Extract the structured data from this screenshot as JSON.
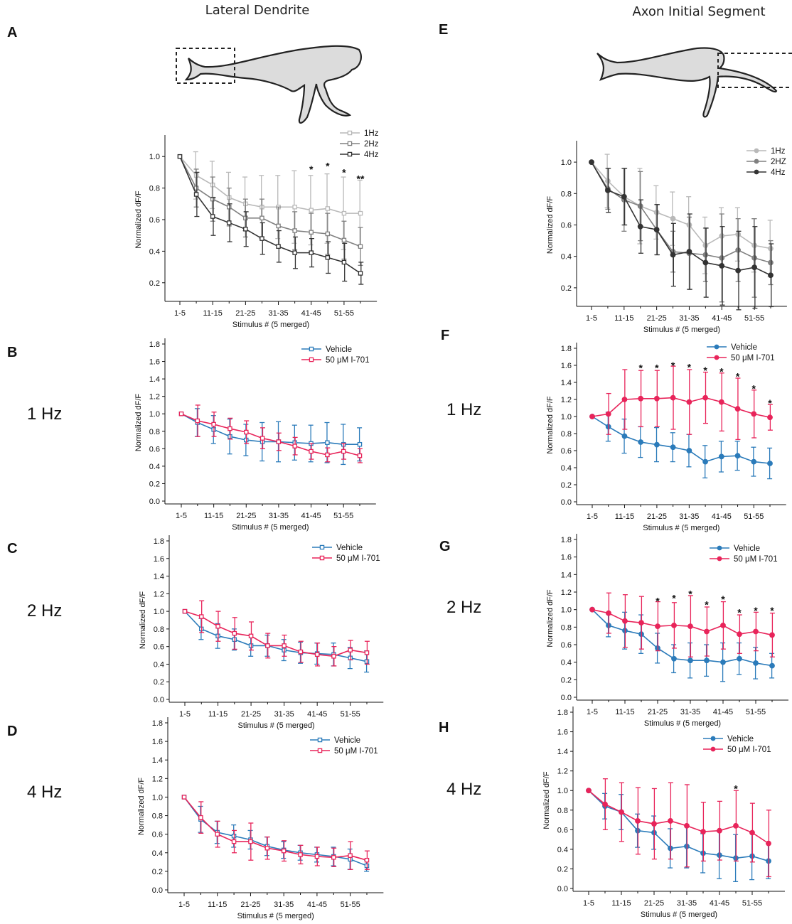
{
  "figure": {
    "column_titles": [
      "Lateral Dendrite",
      "Axon Initial Segment"
    ],
    "frequency_labels": [
      "1 Hz",
      "2 Hz",
      "4 Hz",
      "1 Hz",
      "2 Hz",
      "4 Hz"
    ]
  },
  "colors": {
    "light_gray": "#b9b9b9",
    "mid_gray": "#808080",
    "dark_gray": "#333333",
    "vehicle": "#2b7bba",
    "drug": "#e8245a"
  },
  "chart_data": [
    {
      "panel": "A",
      "type": "line",
      "marker": "open-square",
      "xlabel": "Stimulus # (5 merged)",
      "ylabel": "Normalized dF/F",
      "xticks": [
        "1-5",
        "11-15",
        "21-25",
        "31-35",
        "41-45",
        "51-55"
      ],
      "ylim": [
        0.1,
        1.1
      ],
      "yticks": [
        "0.2",
        "0.4",
        "0.6",
        "0.8",
        "1.0"
      ],
      "series": [
        {
          "name": "1Hz",
          "color_key": "light_gray",
          "values": [
            1.0,
            0.88,
            0.82,
            0.74,
            0.7,
            0.68,
            0.68,
            0.68,
            0.66,
            0.67,
            0.64,
            0.64
          ],
          "err": [
            0.0,
            0.15,
            0.15,
            0.16,
            0.17,
            0.2,
            0.2,
            0.23,
            0.22,
            0.22,
            0.23,
            0.21
          ]
        },
        {
          "name": "2Hz",
          "color_key": "mid_gray",
          "values": [
            1.0,
            0.8,
            0.73,
            0.68,
            0.61,
            0.61,
            0.56,
            0.53,
            0.52,
            0.51,
            0.47,
            0.43
          ],
          "err": [
            0.0,
            0.12,
            0.14,
            0.12,
            0.12,
            0.12,
            0.12,
            0.12,
            0.12,
            0.13,
            0.12,
            0.12
          ]
        },
        {
          "name": "4Hz",
          "color_key": "dark_gray",
          "values": [
            1.0,
            0.76,
            0.62,
            0.58,
            0.54,
            0.48,
            0.43,
            0.39,
            0.39,
            0.36,
            0.33,
            0.26
          ],
          "err": [
            0.0,
            0.14,
            0.12,
            0.12,
            0.11,
            0.1,
            0.1,
            0.1,
            0.09,
            0.1,
            0.12,
            0.07
          ]
        }
      ],
      "annotations": [
        {
          "index": 8,
          "y": 0.92,
          "text": "*"
        },
        {
          "index": 9,
          "y": 0.94,
          "text": "*"
        },
        {
          "index": 10,
          "y": 0.9,
          "text": "*"
        },
        {
          "index": 11,
          "y": 0.86,
          "text": "**"
        }
      ]
    },
    {
      "panel": "B",
      "type": "line",
      "marker": "open-square",
      "xlabel": "Stimulus # (5 merged)",
      "ylabel": "Normalized dF/F",
      "xticks": [
        "1-5",
        "11-15",
        "21-25",
        "31-35",
        "41-45",
        "51-55"
      ],
      "ylim": [
        0.0,
        1.8
      ],
      "yticks": [
        "0.0",
        "0.2",
        "0.4",
        "0.6",
        "0.8",
        "1.0",
        "1.2",
        "1.4",
        "1.6",
        "1.8"
      ],
      "series": [
        {
          "name": "Vehicle",
          "color_key": "vehicle",
          "values": [
            1.0,
            0.9,
            0.82,
            0.74,
            0.7,
            0.68,
            0.68,
            0.67,
            0.66,
            0.67,
            0.65,
            0.65
          ],
          "err": [
            0.0,
            0.16,
            0.16,
            0.2,
            0.18,
            0.22,
            0.23,
            0.2,
            0.21,
            0.23,
            0.23,
            0.19
          ]
        },
        {
          "name": "50 μM I-701",
          "color_key": "drug",
          "values": [
            1.0,
            0.92,
            0.88,
            0.83,
            0.79,
            0.72,
            0.68,
            0.63,
            0.57,
            0.53,
            0.57,
            0.52
          ],
          "err": [
            0.0,
            0.18,
            0.14,
            0.12,
            0.13,
            0.12,
            0.1,
            0.1,
            0.09,
            0.08,
            0.09,
            0.08
          ]
        }
      ]
    },
    {
      "panel": "C",
      "type": "line",
      "marker": "open-square",
      "xlabel": "Stimulus # (5 merged)",
      "ylabel": "Normalized dF/F",
      "xticks": [
        "1-5",
        "11-15",
        "21-25",
        "31-35",
        "41-45",
        "51-55"
      ],
      "ylim": [
        0.0,
        1.8
      ],
      "yticks": [
        "0.0",
        "0.2",
        "0.4",
        "0.6",
        "0.8",
        "1.0",
        "1.2",
        "1.4",
        "1.6",
        "1.8"
      ],
      "series": [
        {
          "name": "Vehicle",
          "color_key": "vehicle",
          "values": [
            1.0,
            0.8,
            0.72,
            0.68,
            0.61,
            0.61,
            0.56,
            0.53,
            0.52,
            0.51,
            0.47,
            0.43
          ],
          "err": [
            0.0,
            0.12,
            0.14,
            0.12,
            0.12,
            0.12,
            0.12,
            0.12,
            0.12,
            0.13,
            0.12,
            0.12
          ]
        },
        {
          "name": "50 μM I-701",
          "color_key": "drug",
          "values": [
            1.0,
            0.94,
            0.83,
            0.75,
            0.72,
            0.61,
            0.61,
            0.54,
            0.51,
            0.49,
            0.56,
            0.53
          ],
          "err": [
            0.0,
            0.18,
            0.17,
            0.18,
            0.16,
            0.14,
            0.12,
            0.12,
            0.13,
            0.11,
            0.11,
            0.13
          ]
        }
      ]
    },
    {
      "panel": "D",
      "type": "line",
      "marker": "open-square",
      "xlabel": "Stimulus # (5 merged)",
      "ylabel": "Normalized dF/F",
      "xticks": [
        "1-5",
        "11-15",
        "21-25",
        "31-35",
        "41-45",
        "51-55"
      ],
      "ylim": [
        0.0,
        1.8
      ],
      "yticks": [
        "0.0",
        "0.2",
        "0.4",
        "0.6",
        "0.8",
        "1.0",
        "1.2",
        "1.4",
        "1.6",
        "1.8"
      ],
      "series": [
        {
          "name": "Vehicle",
          "color_key": "vehicle",
          "values": [
            1.0,
            0.76,
            0.62,
            0.58,
            0.54,
            0.47,
            0.43,
            0.4,
            0.38,
            0.36,
            0.33,
            0.26
          ],
          "err": [
            0.0,
            0.14,
            0.12,
            0.12,
            0.1,
            0.1,
            0.09,
            0.08,
            0.08,
            0.1,
            0.11,
            0.06
          ]
        },
        {
          "name": "50 μM I-701",
          "color_key": "drug",
          "values": [
            1.0,
            0.78,
            0.6,
            0.52,
            0.52,
            0.45,
            0.42,
            0.38,
            0.36,
            0.35,
            0.37,
            0.32
          ],
          "err": [
            0.0,
            0.17,
            0.14,
            0.12,
            0.2,
            0.12,
            0.11,
            0.1,
            0.1,
            0.1,
            0.15,
            0.1
          ]
        }
      ]
    },
    {
      "panel": "E",
      "type": "line",
      "marker": "filled-circle",
      "xlabel": "Stimulus # (5 merged)",
      "ylabel": "Normalized dF/F",
      "xticks": [
        "1-5",
        "11-15",
        "21-25",
        "31-35",
        "41-45",
        "51-55"
      ],
      "ylim": [
        0.1,
        1.1
      ],
      "yticks": [
        "0.2",
        "0.4",
        "0.6",
        "0.8",
        "1.0"
      ],
      "series": [
        {
          "name": "1Hz",
          "color_key": "light_gray",
          "values": [
            1.0,
            0.88,
            0.78,
            0.72,
            0.68,
            0.64,
            0.6,
            0.47,
            0.53,
            0.54,
            0.47,
            0.45
          ],
          "err": [
            0.0,
            0.17,
            0.18,
            0.24,
            0.17,
            0.17,
            0.18,
            0.18,
            0.18,
            0.17,
            0.17,
            0.18
          ]
        },
        {
          "name": "2HZ",
          "color_key": "mid_gray",
          "values": [
            1.0,
            0.83,
            0.76,
            0.72,
            0.57,
            0.43,
            0.42,
            0.41,
            0.39,
            0.44,
            0.39,
            0.36
          ],
          "err": [
            0.0,
            0.13,
            0.2,
            0.22,
            0.16,
            0.13,
            0.23,
            0.17,
            0.28,
            0.2,
            0.25,
            0.14
          ]
        },
        {
          "name": "4Hz",
          "color_key": "dark_gray",
          "values": [
            1.0,
            0.82,
            0.78,
            0.59,
            0.57,
            0.41,
            0.43,
            0.36,
            0.34,
            0.31,
            0.33,
            0.28
          ],
          "err": [
            0.0,
            0.14,
            0.18,
            0.17,
            0.16,
            0.2,
            0.24,
            0.22,
            0.25,
            0.25,
            0.26,
            0.2
          ]
        }
      ]
    },
    {
      "panel": "F",
      "type": "line",
      "marker": "filled-circle",
      "xlabel": "Stimulus # (5 merged)",
      "ylabel": "Normalized dF/F",
      "xticks": [
        "1-5",
        "11-15",
        "21-25",
        "31-35",
        "41-45",
        "51-55"
      ],
      "ylim": [
        0.0,
        1.8
      ],
      "yticks": [
        "0.0",
        "0.2",
        "0.4",
        "0.6",
        "0.8",
        "1.0",
        "1.2",
        "1.4",
        "1.6",
        "1.8"
      ],
      "series": [
        {
          "name": "Vehicle",
          "color_key": "vehicle",
          "values": [
            1.0,
            0.88,
            0.77,
            0.7,
            0.67,
            0.64,
            0.6,
            0.47,
            0.53,
            0.54,
            0.47,
            0.45
          ],
          "err": [
            0.0,
            0.17,
            0.2,
            0.18,
            0.2,
            0.17,
            0.19,
            0.19,
            0.18,
            0.17,
            0.17,
            0.18
          ]
        },
        {
          "name": "50 μM I-701",
          "color_key": "drug",
          "values": [
            1.0,
            1.03,
            1.2,
            1.21,
            1.21,
            1.22,
            1.17,
            1.22,
            1.17,
            1.09,
            1.03,
            0.99
          ],
          "err": [
            0.0,
            0.24,
            0.35,
            0.33,
            0.33,
            0.37,
            0.38,
            0.3,
            0.34,
            0.36,
            0.28,
            0.15
          ]
        }
      ],
      "annotations": [
        {
          "index": 3,
          "y": 1.57,
          "text": "*"
        },
        {
          "index": 4,
          "y": 1.57,
          "text": "*"
        },
        {
          "index": 5,
          "y": 1.6,
          "text": "*"
        },
        {
          "index": 6,
          "y": 1.58,
          "text": "*"
        },
        {
          "index": 7,
          "y": 1.54,
          "text": "*"
        },
        {
          "index": 8,
          "y": 1.53,
          "text": "*"
        },
        {
          "index": 9,
          "y": 1.47,
          "text": "*"
        },
        {
          "index": 10,
          "y": 1.33,
          "text": "*"
        },
        {
          "index": 11,
          "y": 1.16,
          "text": "*"
        }
      ]
    },
    {
      "panel": "G",
      "type": "line",
      "marker": "filled-circle",
      "xlabel": "Stimulus # (5 merged)",
      "ylabel": "Normalized dF/F",
      "xticks": [
        "1-5",
        "11-15",
        "21-25",
        "31-35",
        "41-45",
        "51-55"
      ],
      "ylim": [
        0.0,
        1.8
      ],
      "yticks": [
        "0.0",
        "0.2",
        "0.4",
        "0.6",
        "0.8",
        "1.0",
        "1.2",
        "1.4",
        "1.6",
        "1.8"
      ],
      "series": [
        {
          "name": "Vehicle",
          "color_key": "vehicle",
          "values": [
            1.0,
            0.82,
            0.76,
            0.72,
            0.56,
            0.44,
            0.42,
            0.42,
            0.4,
            0.44,
            0.39,
            0.36
          ],
          "err": [
            0.0,
            0.13,
            0.21,
            0.22,
            0.17,
            0.16,
            0.2,
            0.18,
            0.22,
            0.18,
            0.18,
            0.14
          ]
        },
        {
          "name": "50 μM I-701",
          "color_key": "drug",
          "values": [
            1.0,
            0.96,
            0.87,
            0.85,
            0.81,
            0.82,
            0.81,
            0.75,
            0.82,
            0.72,
            0.75,
            0.71
          ],
          "err": [
            0.0,
            0.23,
            0.3,
            0.3,
            0.28,
            0.26,
            0.35,
            0.28,
            0.27,
            0.22,
            0.22,
            0.25
          ]
        }
      ],
      "annotations": [
        {
          "index": 4,
          "y": 1.1,
          "text": "*"
        },
        {
          "index": 5,
          "y": 1.13,
          "text": "*"
        },
        {
          "index": 6,
          "y": 1.18,
          "text": "*"
        },
        {
          "index": 7,
          "y": 1.06,
          "text": "*"
        },
        {
          "index": 8,
          "y": 1.12,
          "text": "*"
        },
        {
          "index": 9,
          "y": 0.97,
          "text": "*"
        },
        {
          "index": 10,
          "y": 0.99,
          "text": "*"
        },
        {
          "index": 11,
          "y": 0.99,
          "text": "*"
        }
      ]
    },
    {
      "panel": "H",
      "type": "line",
      "marker": "filled-circle",
      "xlabel": "Stimulus # (5 merged)",
      "ylabel": "Normalized dF/F",
      "xticks": [
        "1-5",
        "11-15",
        "21-25",
        "31-35",
        "41-45",
        "51-55"
      ],
      "ylim": [
        0.0,
        1.8
      ],
      "yticks": [
        "0.0",
        "0.2",
        "0.4",
        "0.6",
        "0.8",
        "1.0",
        "1.2",
        "1.4",
        "1.6",
        "1.8"
      ],
      "series": [
        {
          "name": "Vehicle",
          "color_key": "vehicle",
          "values": [
            1.0,
            0.84,
            0.78,
            0.59,
            0.57,
            0.41,
            0.43,
            0.36,
            0.34,
            0.31,
            0.33,
            0.28
          ],
          "err": [
            0.0,
            0.13,
            0.18,
            0.17,
            0.17,
            0.2,
            0.22,
            0.2,
            0.24,
            0.24,
            0.24,
            0.18
          ]
        },
        {
          "name": "50 μM I-701",
          "color_key": "drug",
          "values": [
            1.0,
            0.86,
            0.78,
            0.69,
            0.66,
            0.69,
            0.64,
            0.58,
            0.59,
            0.64,
            0.57,
            0.46
          ],
          "err": [
            0.0,
            0.26,
            0.3,
            0.34,
            0.36,
            0.39,
            0.42,
            0.3,
            0.3,
            0.36,
            0.3,
            0.34
          ]
        }
      ],
      "annotations": [
        {
          "index": 9,
          "y": 1.02,
          "text": "*"
        }
      ]
    }
  ]
}
